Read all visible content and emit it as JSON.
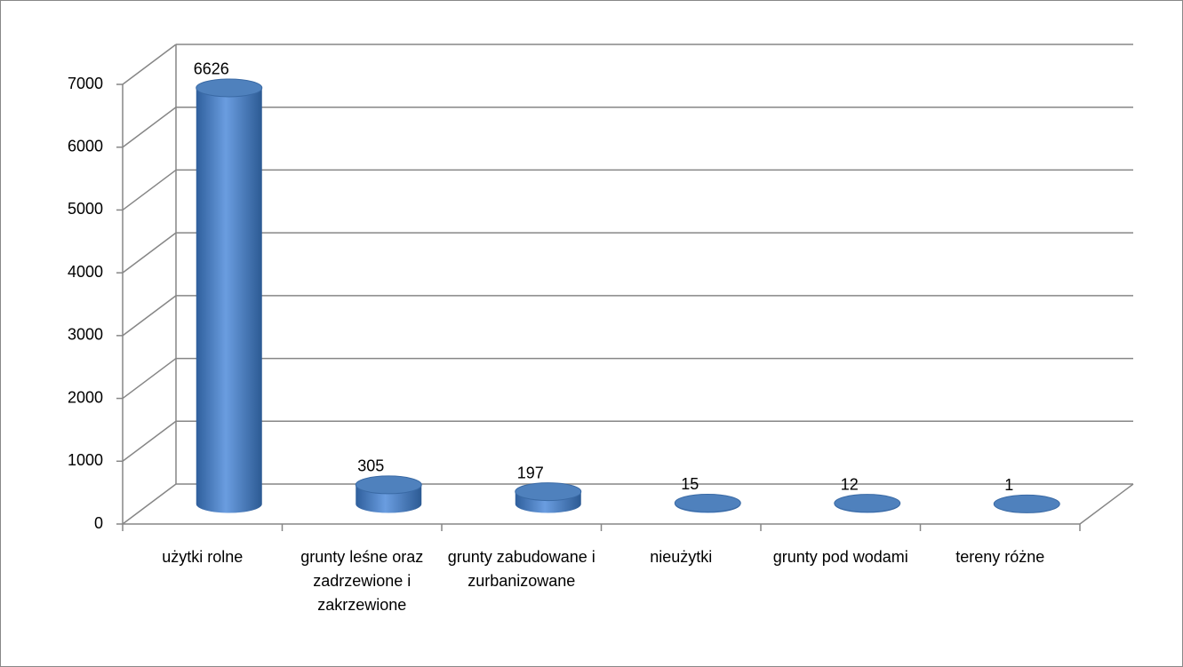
{
  "chart_data": {
    "type": "bar3d",
    "categories": [
      "użytki rolne",
      "grunty leśne oraz zadrzewione i zakrzewione",
      "grunty zabudowane i zurbanizowane",
      "nieużytki",
      "grunty pod wodami",
      "tereny różne"
    ],
    "values": [
      6626,
      305,
      197,
      15,
      12,
      1
    ],
    "color": "#4f81bd",
    "ylim": [
      0,
      7000
    ],
    "yticks": [
      0,
      1000,
      2000,
      3000,
      4000,
      5000,
      6000,
      7000
    ],
    "grid": true
  }
}
